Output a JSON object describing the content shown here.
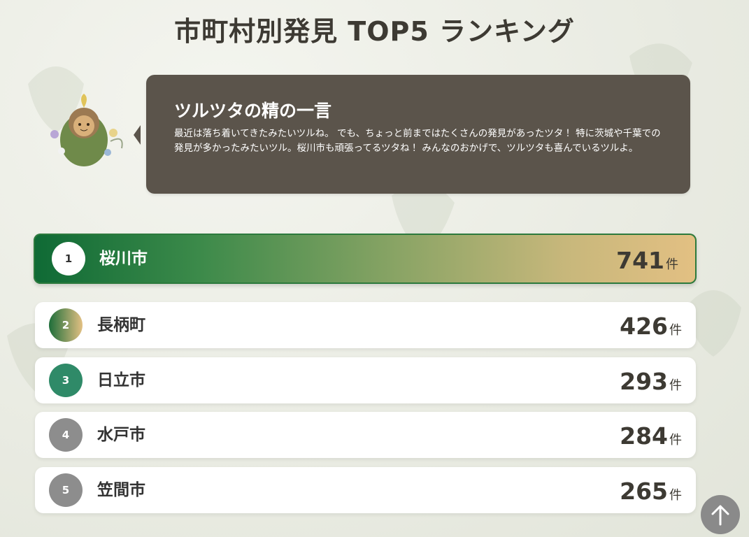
{
  "header": {
    "title": "市町村別発見 TOP5 ランキング"
  },
  "message": {
    "title": "ツルツタの精の一言",
    "text": "最近は落ち着いてきたみたいツルね。 でも、ちょっと前まではたくさんの発見があったツタ！ 特に茨城や千葉での発見が多かったみたいツル。桜川市も頑張ってるツタね！ みんなのおかげで、ツルツタも喜んでいるツルよ。"
  },
  "ranking": {
    "unit": "件",
    "items": [
      {
        "rank": 1,
        "name": "桜川市",
        "count": 741
      },
      {
        "rank": 2,
        "name": "長柄町",
        "count": 426
      },
      {
        "rank": 3,
        "name": "日立市",
        "count": 293
      },
      {
        "rank": 4,
        "name": "水戸市",
        "count": 284
      },
      {
        "rank": 5,
        "name": "笠間市",
        "count": 265
      }
    ]
  }
}
